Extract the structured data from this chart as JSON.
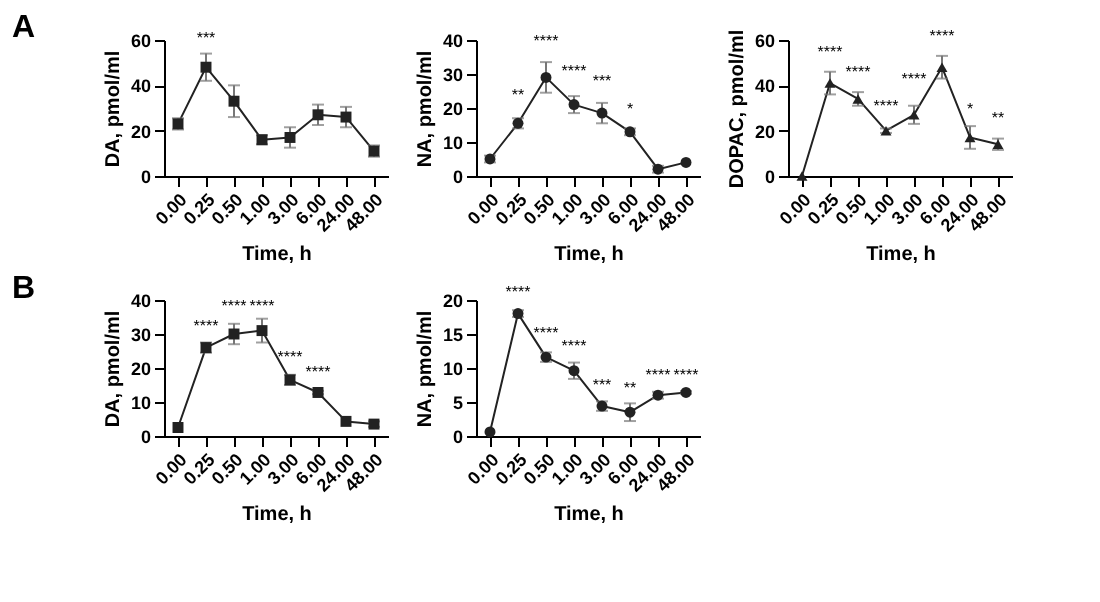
{
  "chart_data": [
    {
      "type": "line",
      "title": "A",
      "xlabel": "Time, h",
      "ylabel": "DA, pmol/ml",
      "categories": [
        "0.00",
        "0.25",
        "0.50",
        "1.00",
        "3.00",
        "6.00",
        "24.00",
        "48.00"
      ],
      "series": [
        {
          "color": "#222222",
          "values": [
            23,
            48,
            33,
            16,
            17,
            27,
            26,
            11
          ],
          "errors": [
            2.5,
            6,
            7,
            2,
            4.5,
            4.5,
            4.5,
            2.5
          ]
        }
      ],
      "ylim": [
        0,
        60
      ],
      "yticks": [
        0,
        20,
        40,
        60
      ],
      "marker": "square",
      "line_style": "solid",
      "grid": false,
      "annotations": [
        {
          "text": "***",
          "x": "0.25",
          "y": 55
        }
      ]
    },
    {
      "type": "line",
      "xlabel": "Time, h",
      "ylabel": "NA, pmol/ml",
      "categories": [
        "0.00",
        "0.25",
        "0.50",
        "1.00",
        "3.00",
        "6.00",
        "24.00",
        "48.00"
      ],
      "series": [
        {
          "color": "#222222",
          "values": [
            5,
            15.5,
            29,
            21,
            18.5,
            13,
            2,
            4
          ],
          "errors": [
            1,
            1.5,
            4.5,
            2.5,
            3,
            1,
            1,
            null
          ]
        }
      ],
      "ylim": [
        0,
        40
      ],
      "yticks": [
        0,
        10,
        20,
        30,
        40
      ],
      "marker": "circle",
      "line_style": "solid",
      "grid": false,
      "annotations": [
        {
          "text": "**",
          "x": "0.25",
          "y": 20
        },
        {
          "text": "****",
          "x": "0.50",
          "y": 36
        },
        {
          "text": "****",
          "x": "1.00",
          "y": 27
        },
        {
          "text": "***",
          "x": "3.00",
          "y": 24
        },
        {
          "text": "*",
          "x": "6.00",
          "y": 16
        }
      ]
    },
    {
      "type": "line",
      "xlabel": "Time, h",
      "ylabel": "DOPAC, pmol/ml",
      "categories": [
        "0.00",
        "0.25",
        "0.50",
        "1.00",
        "3.00",
        "6.00",
        "24.00",
        "48.00"
      ],
      "series": [
        {
          "color": "#222222",
          "values": [
            0,
            41,
            34,
            20,
            27,
            48,
            17,
            14
          ],
          "errors": [
            null,
            5,
            3,
            1,
            4,
            5,
            5,
            2.5
          ]
        }
      ],
      "ylim": [
        0,
        60
      ],
      "yticks": [
        0,
        20,
        40,
        60
      ],
      "marker": "triangle",
      "line_style": "solid",
      "grid": false,
      "annotations": [
        {
          "text": "****",
          "x": "0.25",
          "y": 49
        },
        {
          "text": "****",
          "x": "0.50",
          "y": 40
        },
        {
          "text": "****",
          "x": "1.00",
          "y": 25
        },
        {
          "text": "****",
          "x": "3.00",
          "y": 37
        },
        {
          "text": "****",
          "x": "6.00",
          "y": 56
        },
        {
          "text": "*",
          "x": "24.00",
          "y": 24
        },
        {
          "text": "**",
          "x": "48.00",
          "y": 20
        }
      ]
    },
    {
      "type": "line",
      "title": "B",
      "xlabel": "Time, h",
      "ylabel": "DA, pmol/ml",
      "categories": [
        "0.00",
        "0.25",
        "0.50",
        "1.00",
        "3.00",
        "6.00",
        "24.00",
        "48.00"
      ],
      "series": [
        {
          "color": "#222222",
          "values": [
            2.5,
            26,
            30,
            31,
            16.5,
            12.8,
            4.3,
            3.5
          ],
          "errors": [
            null,
            1.5,
            3,
            3.5,
            1.5,
            0.5,
            null,
            0.8
          ]
        }
      ],
      "ylim": [
        0,
        40
      ],
      "yticks": [
        0,
        10,
        20,
        30,
        40
      ],
      "marker": "square",
      "line_style": "solid",
      "grid": false,
      "annotations": [
        {
          "text": "****",
          "x": "0.25",
          "y": 28.5
        },
        {
          "text": "****",
          "x": "0.50",
          "y": 34.5
        },
        {
          "text": "****",
          "x": "1.00",
          "y": 34.5
        },
        {
          "text": "****",
          "x": "3.00",
          "y": 19.5
        },
        {
          "text": "****",
          "x": "6.00",
          "y": 15
        }
      ]
    },
    {
      "type": "line",
      "xlabel": "Time, h",
      "ylabel": "NA, pmol/ml",
      "categories": [
        "0.00",
        "0.25",
        "0.50",
        "1.00",
        "3.00",
        "6.00",
        "24.00",
        "48.00"
      ],
      "series": [
        {
          "color": "#222222",
          "values": [
            0.6,
            18,
            11.6,
            9.6,
            4.4,
            3.5,
            6,
            6.4
          ],
          "errors": [
            null,
            0.5,
            0.7,
            1.2,
            0.7,
            1.3,
            0.5,
            0.2
          ]
        }
      ],
      "ylim": [
        0,
        20
      ],
      "yticks": [
        0,
        5,
        10,
        15,
        20
      ],
      "marker": "circle",
      "line_style": "solid",
      "grid": false,
      "annotations": [
        {
          "text": "****",
          "x": "0.25",
          "y": 19.2
        },
        {
          "text": "****",
          "x": "0.50",
          "y": 13.2
        },
        {
          "text": "****",
          "x": "1.00",
          "y": 11.3
        },
        {
          "text": "***",
          "x": "3.00",
          "y": 5.6
        },
        {
          "text": "**",
          "x": "6.00",
          "y": 5.2
        },
        {
          "text": "****",
          "x": "24.00",
          "y": 7
        },
        {
          "text": "****",
          "x": "48.00",
          "y": 7
        }
      ]
    }
  ]
}
